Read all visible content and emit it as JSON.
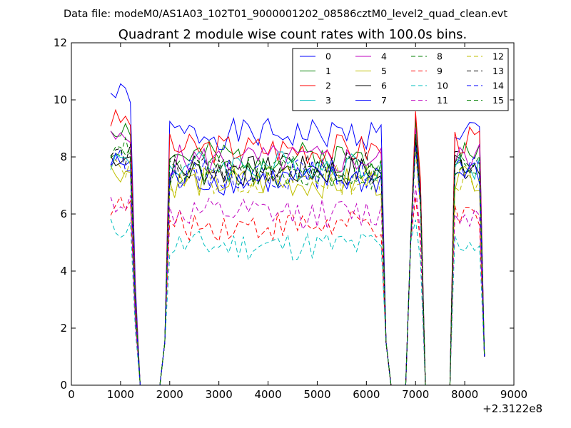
{
  "figure": {
    "suptitle": "Data file: modeM0/AS1A03_102T01_9000001202_08586cztM0_level2_quad_clean.evt"
  },
  "chart_data": {
    "type": "line",
    "title": "Quadrant 2 module wise count rates with 100.0s bins.",
    "xlabel": "",
    "ylabel": "",
    "x_offset_label": "+2.3122e8",
    "xlim": [
      0,
      9000
    ],
    "ylim": [
      0,
      12
    ],
    "x_ticks": [
      0,
      1000,
      2000,
      3000,
      4000,
      5000,
      6000,
      7000,
      8000,
      9000
    ],
    "x_tick_labels": [
      "0",
      "1000",
      "2000",
      "3000",
      "4000",
      "5000",
      "6000",
      "7000",
      "8000",
      "9000"
    ],
    "y_ticks": [
      0,
      2,
      4,
      6,
      8,
      10,
      12
    ],
    "y_tick_labels": [
      "0",
      "2",
      "4",
      "6",
      "8",
      "10",
      "12"
    ],
    "grid": false,
    "legend_placement": "top-right",
    "legend_columns": 4,
    "segments": [
      {
        "x": [
          800,
          900,
          1000,
          1100,
          1200,
          1300,
          1400
        ]
      },
      {
        "x": [
          1800,
          1900,
          2000,
          2100,
          2200,
          2300,
          2400,
          2500,
          2600,
          2700,
          2800,
          2900,
          3000,
          3100,
          3200,
          3300,
          3400,
          3500,
          3600,
          3700,
          3800,
          3900,
          4000,
          4100,
          4200,
          4300,
          4400,
          4500,
          4600,
          4700,
          4800,
          4900,
          5000,
          5100,
          5200,
          5300,
          5400,
          5500,
          5600,
          5700,
          5800,
          5900,
          6000,
          6100,
          6200,
          6300,
          6400,
          6500
        ]
      },
      {
        "x": [
          6800,
          6900,
          7000,
          7100,
          7200
        ]
      },
      {
        "x": [
          7700,
          7800,
          7900,
          8000,
          8100,
          8200,
          8300,
          8400
        ]
      }
    ],
    "series": [
      {
        "name": "0",
        "color": "#0000ff",
        "dash": "solid",
        "levels": [
          10.2,
          8.8,
          9.5,
          8.9
        ],
        "seed": 1
      },
      {
        "name": "1",
        "color": "#008000",
        "dash": "solid",
        "levels": [
          9.0,
          8.0,
          9.3,
          8.2
        ],
        "seed": 2
      },
      {
        "name": "2",
        "color": "#ff0000",
        "dash": "solid",
        "levels": [
          9.3,
          8.3,
          9.6,
          8.6
        ],
        "seed": 3
      },
      {
        "name": "3",
        "color": "#00bfbf",
        "dash": "solid",
        "levels": [
          7.9,
          7.7,
          8.8,
          7.6
        ],
        "seed": 4
      },
      {
        "name": "4",
        "color": "#bf00bf",
        "dash": "solid",
        "levels": [
          8.6,
          7.9,
          9.0,
          8.0
        ],
        "seed": 5
      },
      {
        "name": "5",
        "color": "#bfbf00",
        "dash": "solid",
        "levels": [
          7.5,
          7.1,
          8.5,
          7.3
        ],
        "seed": 6
      },
      {
        "name": "6",
        "color": "#000000",
        "dash": "solid",
        "levels": [
          8.0,
          7.5,
          8.8,
          7.8
        ],
        "seed": 7
      },
      {
        "name": "7",
        "color": "#0000ff",
        "dash": "solid",
        "levels": [
          7.8,
          7.2,
          8.6,
          7.4
        ],
        "seed": 8
      },
      {
        "name": "8",
        "color": "#008000",
        "dash": "dashed",
        "levels": [
          8.2,
          7.4,
          8.5,
          7.6
        ],
        "seed": 9
      },
      {
        "name": "9",
        "color": "#ff0000",
        "dash": "dashed",
        "levels": [
          6.3,
          5.6,
          6.6,
          5.8
        ],
        "seed": 10
      },
      {
        "name": "10",
        "color": "#00bfbf",
        "dash": "dashed",
        "levels": [
          5.5,
          4.9,
          5.8,
          5.0
        ],
        "seed": 11
      },
      {
        "name": "11",
        "color": "#bf00bf",
        "dash": "dashed",
        "levels": [
          6.4,
          6.0,
          7.0,
          6.0
        ],
        "seed": 12
      },
      {
        "name": "12",
        "color": "#bfbf00",
        "dash": "dashed",
        "levels": [
          7.6,
          7.2,
          8.2,
          7.2
        ],
        "seed": 13
      },
      {
        "name": "13",
        "color": "#000000",
        "dash": "dashed",
        "levels": [
          8.1,
          7.6,
          8.7,
          7.7
        ],
        "seed": 14
      },
      {
        "name": "14",
        "color": "#0000ff",
        "dash": "dashed",
        "levels": [
          7.9,
          7.4,
          8.4,
          7.5
        ],
        "seed": 15
      },
      {
        "name": "15",
        "color": "#008000",
        "dash": "dashed",
        "levels": [
          8.3,
          7.5,
          8.8,
          7.8
        ],
        "seed": 16
      }
    ]
  }
}
